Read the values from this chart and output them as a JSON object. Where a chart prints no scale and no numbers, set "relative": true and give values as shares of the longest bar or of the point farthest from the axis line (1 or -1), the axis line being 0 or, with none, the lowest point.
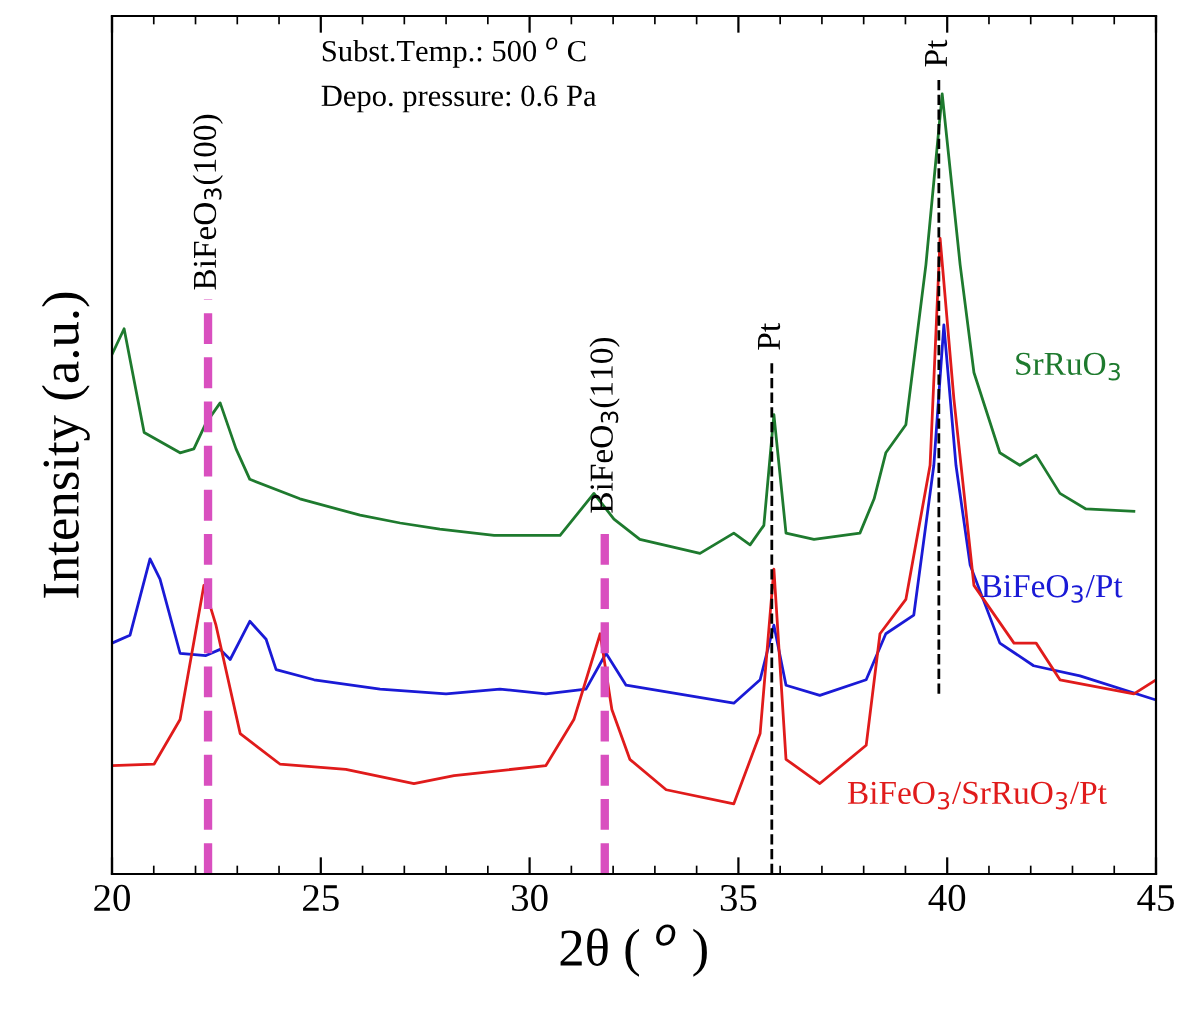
{
  "chart_data": {
    "type": "line",
    "relative": true,
    "xlabel": "2θ ( $^{o}$ )",
    "ylabel": "Intensity (a.u.)",
    "xlim": [
      20,
      45
    ],
    "xticks": [
      20,
      25,
      30,
      35,
      40,
      45
    ],
    "grid": false,
    "legend": false,
    "marker": "none",
    "line_style": "solid",
    "annotations": [
      "Subst.Temp.: 500 $^{o}$ C",
      "Depo. pressure: 0.6 Pa"
    ],
    "ref_lines": [
      {
        "axis": "x",
        "value": 22.3,
        "label": "BiFeO$_{3}$(100)",
        "color": "#d94fbf",
        "line_style": "dashed"
      },
      {
        "axis": "x",
        "value": 31.8,
        "label": "BiFeO$_{3}$(110)",
        "color": "#d94fbf",
        "line_style": "dashed"
      },
      {
        "axis": "x",
        "value": 35.8,
        "label": "Pt",
        "color": "#000000",
        "line_style": "dashed"
      },
      {
        "axis": "x",
        "value": 39.8,
        "label": "Pt",
        "color": "#000000",
        "line_style": "dashed"
      }
    ],
    "series": [
      {
        "name": "SrRuO$_{3}$",
        "color": "#1e7a2e",
        "x": [
          20.0,
          20.29,
          20.77,
          21.63,
          21.96,
          22.25,
          22.59,
          22.97,
          23.3,
          24.5,
          25.94,
          26.9,
          27.85,
          29.15,
          30.73,
          31.54,
          32.02,
          32.64,
          34.08,
          34.89,
          35.28,
          35.61,
          35.85,
          36.14,
          36.81,
          37.91,
          38.25,
          38.53,
          39.01,
          39.49,
          39.88,
          40.31,
          40.64,
          41.26,
          41.74,
          42.13,
          42.7,
          43.32,
          44.47
        ],
        "values": [
          0.666,
          0.699,
          0.566,
          0.54,
          0.545,
          0.578,
          0.604,
          0.545,
          0.506,
          0.481,
          0.46,
          0.45,
          0.442,
          0.434,
          0.434,
          0.488,
          0.455,
          0.429,
          0.411,
          0.437,
          0.422,
          0.447,
          0.589,
          0.437,
          0.429,
          0.437,
          0.481,
          0.54,
          0.576,
          0.781,
          1.0,
          0.781,
          0.643,
          0.54,
          0.524,
          0.537,
          0.488,
          0.468,
          0.465
        ]
      },
      {
        "name": "BiFeO$_{3}$/Pt",
        "color": "#1a1ad6",
        "x": [
          20.0,
          20.43,
          20.91,
          21.15,
          21.63,
          22.25,
          22.59,
          22.83,
          23.3,
          23.69,
          23.93,
          24.84,
          26.42,
          28.0,
          29.29,
          30.39,
          31.35,
          31.83,
          32.31,
          34.89,
          35.52,
          35.85,
          36.14,
          36.95,
          38.06,
          38.53,
          39.2,
          39.68,
          39.92,
          40.21,
          40.55,
          41.26,
          42.07,
          43.18,
          44.95
        ],
        "values": [
          0.296,
          0.306,
          0.404,
          0.378,
          0.283,
          0.28,
          0.288,
          0.275,
          0.324,
          0.301,
          0.262,
          0.249,
          0.237,
          0.231,
          0.237,
          0.231,
          0.237,
          0.283,
          0.242,
          0.219,
          0.249,
          0.319,
          0.242,
          0.229,
          0.249,
          0.308,
          0.332,
          0.524,
          0.704,
          0.524,
          0.396,
          0.296,
          0.267,
          0.254,
          0.224
        ]
      },
      {
        "name": "BiFeO$_{3}$/SrRuO$_{3}$/Pt",
        "color": "#e01b1b",
        "x": [
          20.0,
          21.01,
          21.63,
          22.2,
          22.49,
          23.07,
          24.02,
          25.6,
          27.23,
          28.19,
          30.39,
          31.06,
          31.69,
          31.97,
          32.4,
          33.27,
          34.89,
          35.52,
          35.85,
          36.14,
          36.95,
          38.06,
          38.39,
          39.01,
          39.59,
          39.83,
          40.16,
          40.64,
          41.6,
          42.13,
          42.7,
          44.47,
          45.0
        ],
        "values": [
          0.139,
          0.141,
          0.198,
          0.37,
          0.319,
          0.18,
          0.141,
          0.134,
          0.116,
          0.126,
          0.139,
          0.198,
          0.308,
          0.211,
          0.147,
          0.108,
          0.09,
          0.18,
          0.391,
          0.147,
          0.116,
          0.165,
          0.308,
          0.352,
          0.524,
          0.815,
          0.609,
          0.37,
          0.296,
          0.296,
          0.249,
          0.231,
          0.249
        ]
      }
    ]
  }
}
